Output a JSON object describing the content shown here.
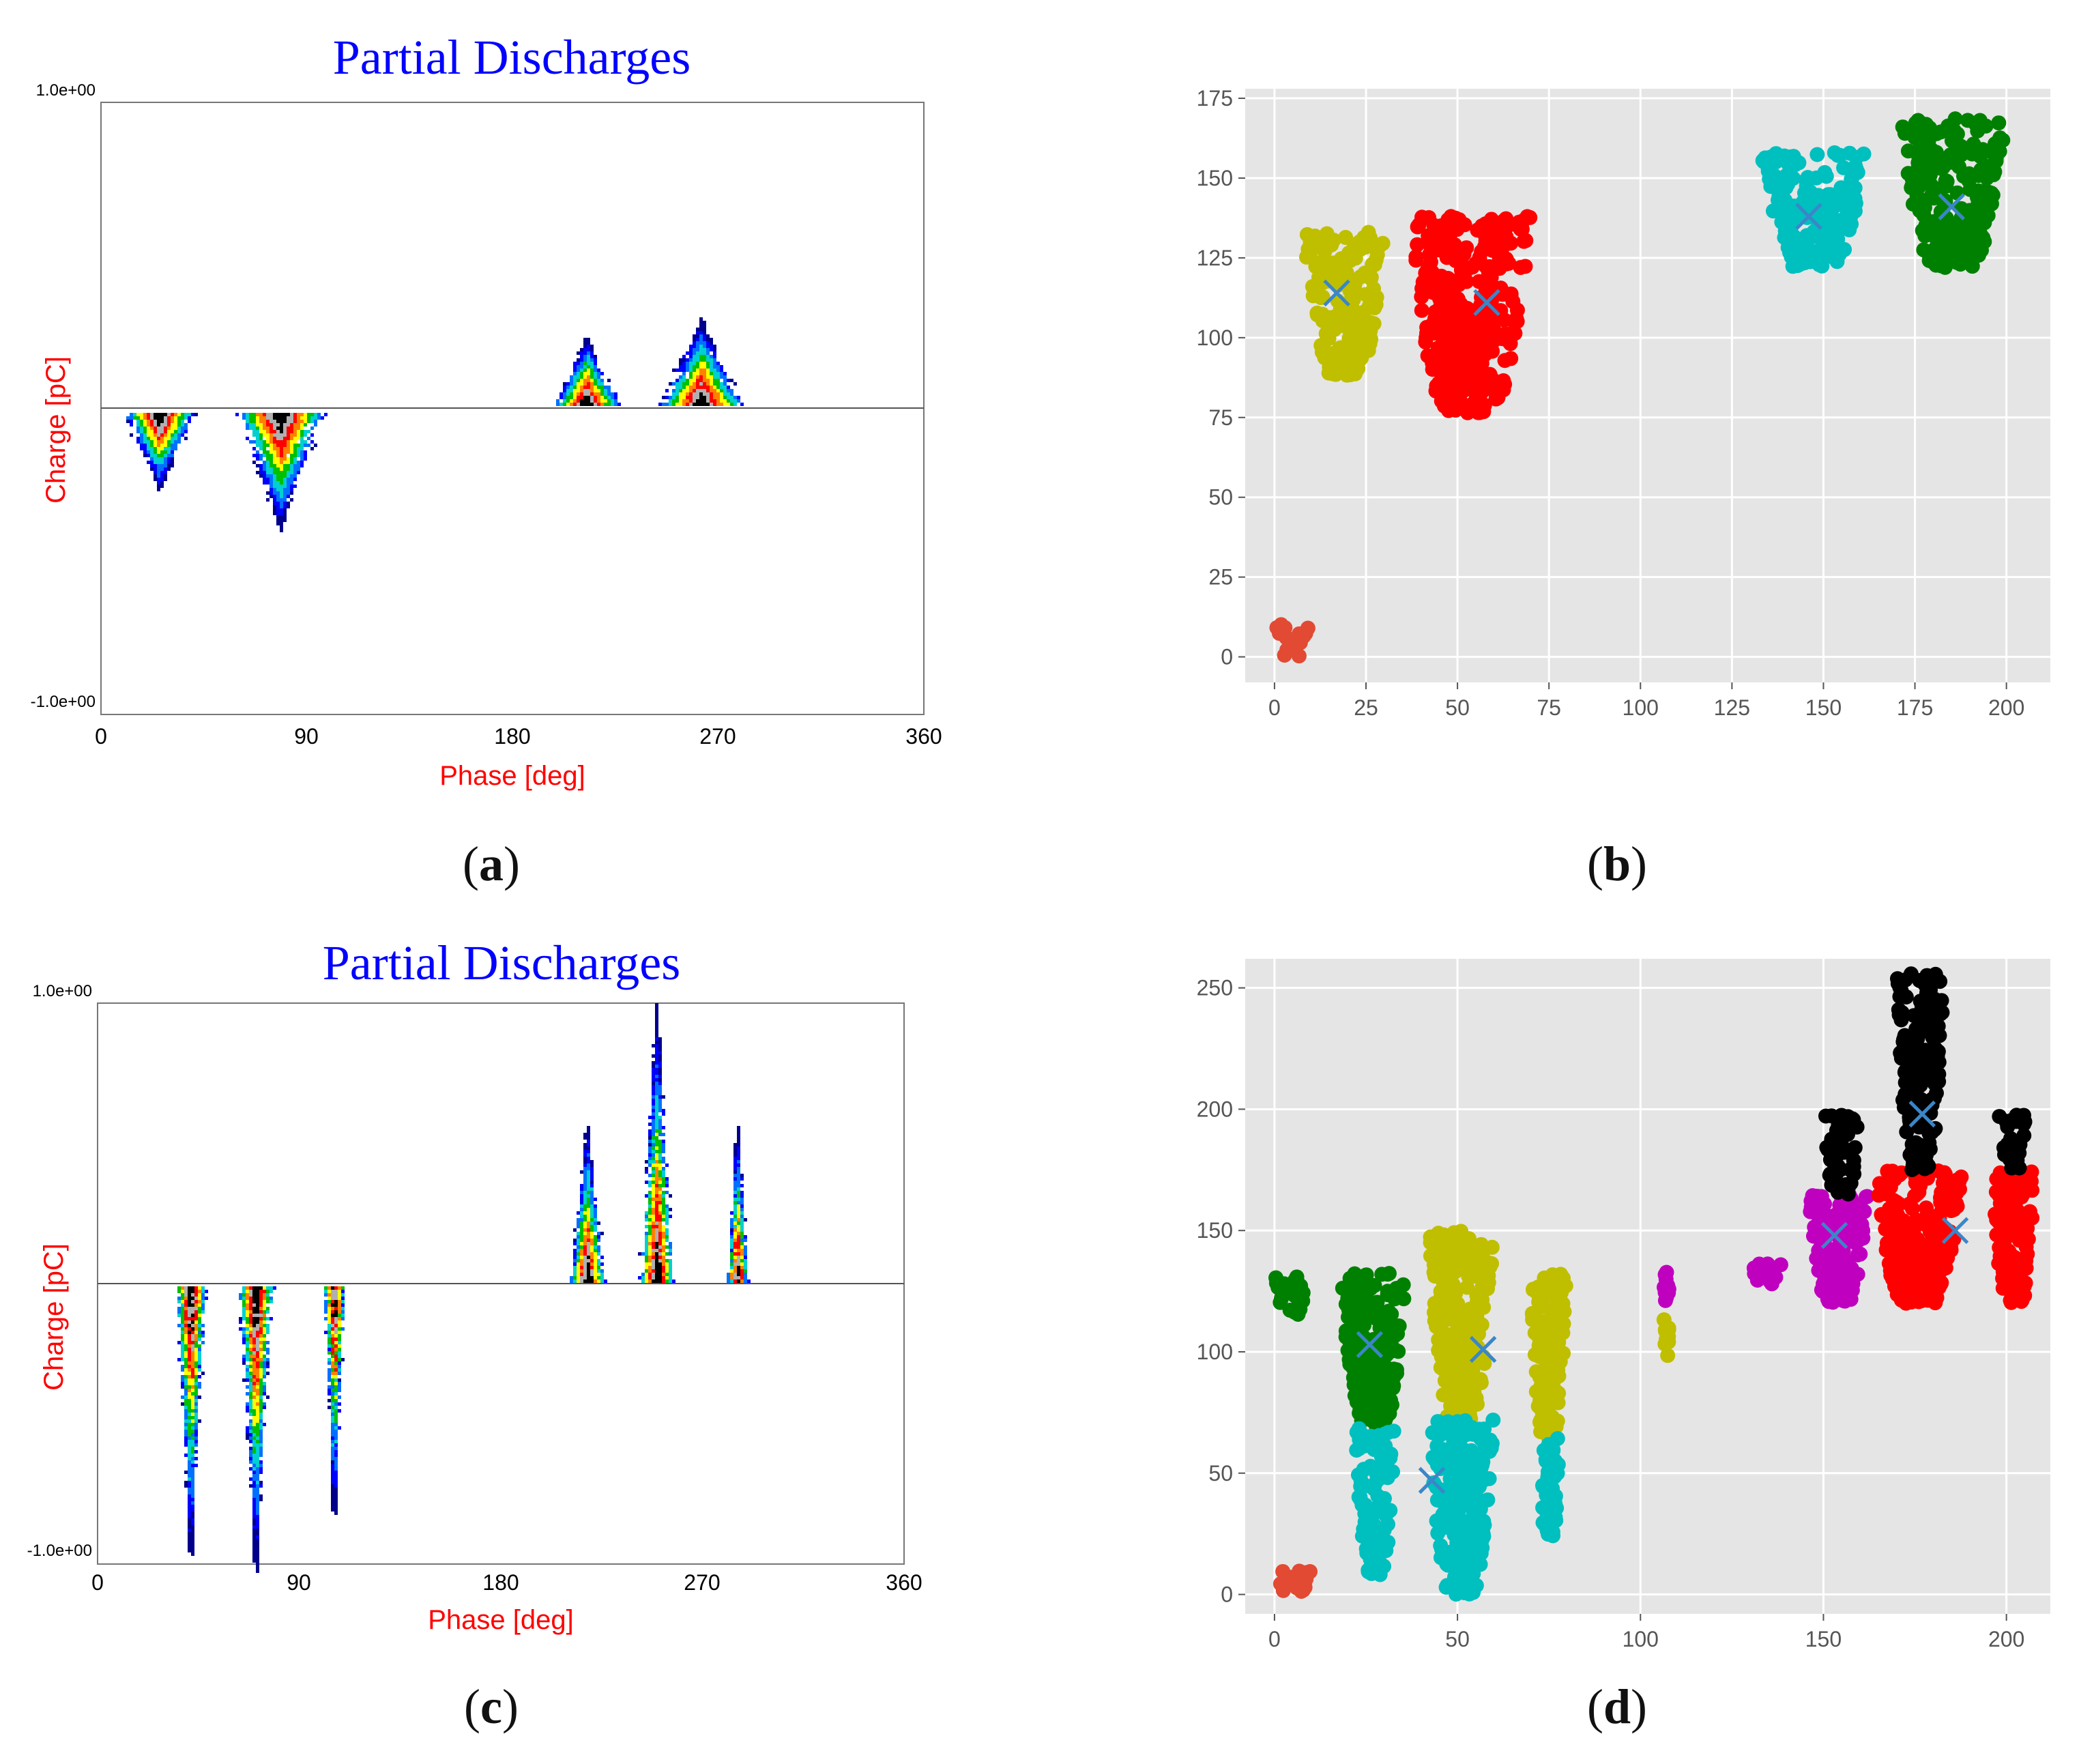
{
  "chart_data": [
    {
      "id": "a",
      "type": "heatmap",
      "title": "Partial Discharges",
      "xlabel": "Phase [deg]",
      "ylabel": "Charge [pC]",
      "xlim": [
        0,
        360
      ],
      "ylim": [
        -1,
        1
      ],
      "xticks": [
        "0",
        "90",
        "180",
        "270",
        "360"
      ],
      "ytick_top": "1.0e+00",
      "ytick_bottom": "-1.0e+00",
      "clusters": [
        {
          "phase": 25,
          "peak": -0.25,
          "width": 32,
          "sign": "negative"
        },
        {
          "phase": 78,
          "peak": -0.38,
          "width": 40,
          "sign": "negative"
        },
        {
          "phase": 212,
          "peak": 0.22,
          "width": 30,
          "sign": "positive"
        },
        {
          "phase": 262,
          "peak": 0.28,
          "width": 38,
          "sign": "positive"
        }
      ]
    },
    {
      "id": "b",
      "type": "scatter",
      "xlim": [
        -8,
        212
      ],
      "ylim": [
        -8,
        178
      ],
      "xticks": [
        0,
        25,
        50,
        75,
        100,
        125,
        150,
        175,
        200
      ],
      "yticks": [
        0,
        25,
        50,
        75,
        100,
        125,
        150,
        175
      ],
      "clusters": [
        {
          "color": "#e24a33",
          "x": [
            0,
            10
          ],
          "y": [
            0,
            11
          ]
        },
        {
          "color": "#bfbf00",
          "x": [
            8,
            30
          ],
          "y": [
            88,
            133
          ]
        },
        {
          "color": "#ff0000",
          "x": [
            37,
            70
          ],
          "y": [
            76,
            138
          ]
        },
        {
          "color": "#00bfbf",
          "x": [
            133,
            162
          ],
          "y": [
            122,
            158
          ]
        },
        {
          "color": "#008000",
          "x": [
            171,
            200
          ],
          "y": [
            122,
            169
          ]
        }
      ],
      "centroids": [
        {
          "x": 17,
          "y": 114
        },
        {
          "x": 58,
          "y": 111
        },
        {
          "x": 146,
          "y": 138
        },
        {
          "x": 185,
          "y": 141
        }
      ]
    },
    {
      "id": "c",
      "type": "heatmap",
      "title": "Partial Discharges",
      "xlabel": "Phase [deg]",
      "ylabel": "Charge [pC]",
      "xlim": [
        0,
        360
      ],
      "ylim": [
        -1,
        1
      ],
      "xticks": [
        "0",
        "90",
        "180",
        "270",
        "360"
      ],
      "ytick_top": "1.0e+00",
      "ytick_bottom": "-1.0e+00",
      "clusters": [
        {
          "phase": 41,
          "peak": -0.95,
          "width": 14,
          "sign": "negative"
        },
        {
          "phase": 70,
          "peak": -1.0,
          "width": 16,
          "sign": "negative"
        },
        {
          "phase": 105,
          "peak": -0.8,
          "width": 9,
          "sign": "negative"
        },
        {
          "phase": 218,
          "peak": 0.55,
          "width": 16,
          "sign": "positive"
        },
        {
          "phase": 249,
          "peak": 0.98,
          "width": 16,
          "sign": "positive"
        },
        {
          "phase": 285,
          "peak": 0.55,
          "width": 9,
          "sign": "positive"
        }
      ]
    },
    {
      "id": "d",
      "type": "scatter",
      "xlim": [
        -8,
        212
      ],
      "ylim": [
        -8,
        262
      ],
      "xticks": [
        0,
        50,
        100,
        150,
        200
      ],
      "yticks": [
        0,
        50,
        100,
        150,
        200,
        250
      ],
      "clusters": [
        {
          "color": "#e24a33",
          "x": [
            0,
            10
          ],
          "y": [
            0,
            11
          ]
        },
        {
          "color": "#008000",
          "x": [
            0,
            9
          ],
          "y": [
            115,
            132
          ]
        },
        {
          "color": "#008000",
          "x": [
            18,
            36
          ],
          "y": [
            70,
            133
          ]
        },
        {
          "color": "#00bfbf",
          "x": [
            22,
            33
          ],
          "y": [
            8,
            70
          ]
        },
        {
          "color": "#bfbf00",
          "x": [
            42,
            60
          ],
          "y": [
            72,
            150
          ]
        },
        {
          "color": "#00bfbf",
          "x": [
            42,
            60
          ],
          "y": [
            0,
            72
          ]
        },
        {
          "color": "#bfbf00",
          "x": [
            70,
            80
          ],
          "y": [
            65,
            132
          ]
        },
        {
          "color": "#00bfbf",
          "x": [
            72,
            78
          ],
          "y": [
            23,
            65
          ]
        },
        {
          "color": "#bf00bf",
          "x": [
            106,
            108
          ],
          "y": [
            120,
            133
          ]
        },
        {
          "color": "#bfbf00",
          "x": [
            106,
            108
          ],
          "y": [
            98,
            120
          ]
        },
        {
          "color": "#bf00bf",
          "x": [
            130,
            140
          ],
          "y": [
            128,
            137
          ]
        },
        {
          "color": "#bf00bf",
          "x": [
            146,
            162
          ],
          "y": [
            120,
            165
          ]
        },
        {
          "color": "#000000",
          "x": [
            150,
            160
          ],
          "y": [
            165,
            198
          ]
        },
        {
          "color": "#ff0000",
          "x": [
            164,
            188
          ],
          "y": [
            120,
            175
          ]
        },
        {
          "color": "#000000",
          "x": [
            170,
            183
          ],
          "y": [
            175,
            256
          ]
        },
        {
          "color": "#ff0000",
          "x": [
            196,
            208
          ],
          "y": [
            120,
            175
          ]
        },
        {
          "color": "#000000",
          "x": [
            198,
            206
          ],
          "y": [
            175,
            198
          ]
        }
      ],
      "centroids": [
        {
          "x": 26,
          "y": 103
        },
        {
          "x": 43,
          "y": 47
        },
        {
          "x": 57,
          "y": 101
        },
        {
          "x": 153,
          "y": 148
        },
        {
          "x": 177,
          "y": 198
        },
        {
          "x": 186,
          "y": 150
        }
      ]
    }
  ],
  "captions": {
    "a": "a",
    "b": "b",
    "c": "c",
    "d": "d"
  }
}
